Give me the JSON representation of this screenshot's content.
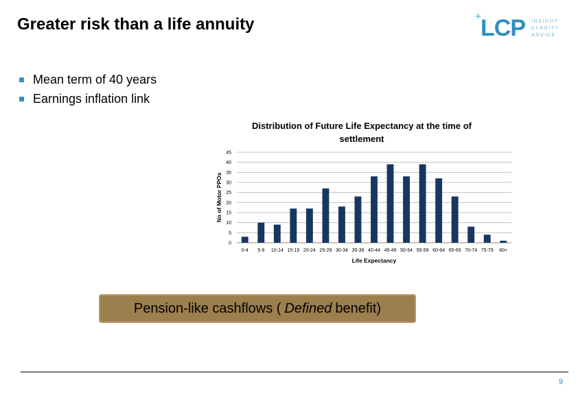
{
  "slide": {
    "title": "Greater risk than a life annuity",
    "bullets": [
      "Mean term of 40 years",
      "Earnings inflation link"
    ],
    "callout": {
      "before": "Pension-like cashflows (",
      "italic": "Defined",
      "after": " benefit)"
    },
    "page_number": "9"
  },
  "logo": {
    "mark": "LCP",
    "plus": "+",
    "tagline": [
      "INSIGHT",
      "CLARITY",
      "ADVICE"
    ],
    "color": "#2e8fc0"
  },
  "chart_data": {
    "type": "bar",
    "title_lines": [
      "Distribution of Future Life Expectancy at the time of",
      "settlement"
    ],
    "xlabel": "Life Expectancy",
    "ylabel": "No of Motor PPOs",
    "categories": [
      "0-4",
      "5-9",
      "10-14",
      "15-19",
      "20-24",
      "25-29",
      "30-34",
      "35-39",
      "40-44",
      "45-49",
      "50-54",
      "55-59",
      "60-64",
      "65-69",
      "70-74",
      "75-79",
      "80+"
    ],
    "values": [
      3,
      10,
      9,
      17,
      17,
      27,
      18,
      23,
      33,
      39,
      33,
      39,
      32,
      23,
      8,
      4,
      1
    ],
    "ylim": [
      0,
      45
    ],
    "yticks": [
      0,
      5,
      10,
      15,
      20,
      25,
      30,
      35,
      40,
      45
    ],
    "grid": true,
    "bar_color": "#17375e"
  }
}
